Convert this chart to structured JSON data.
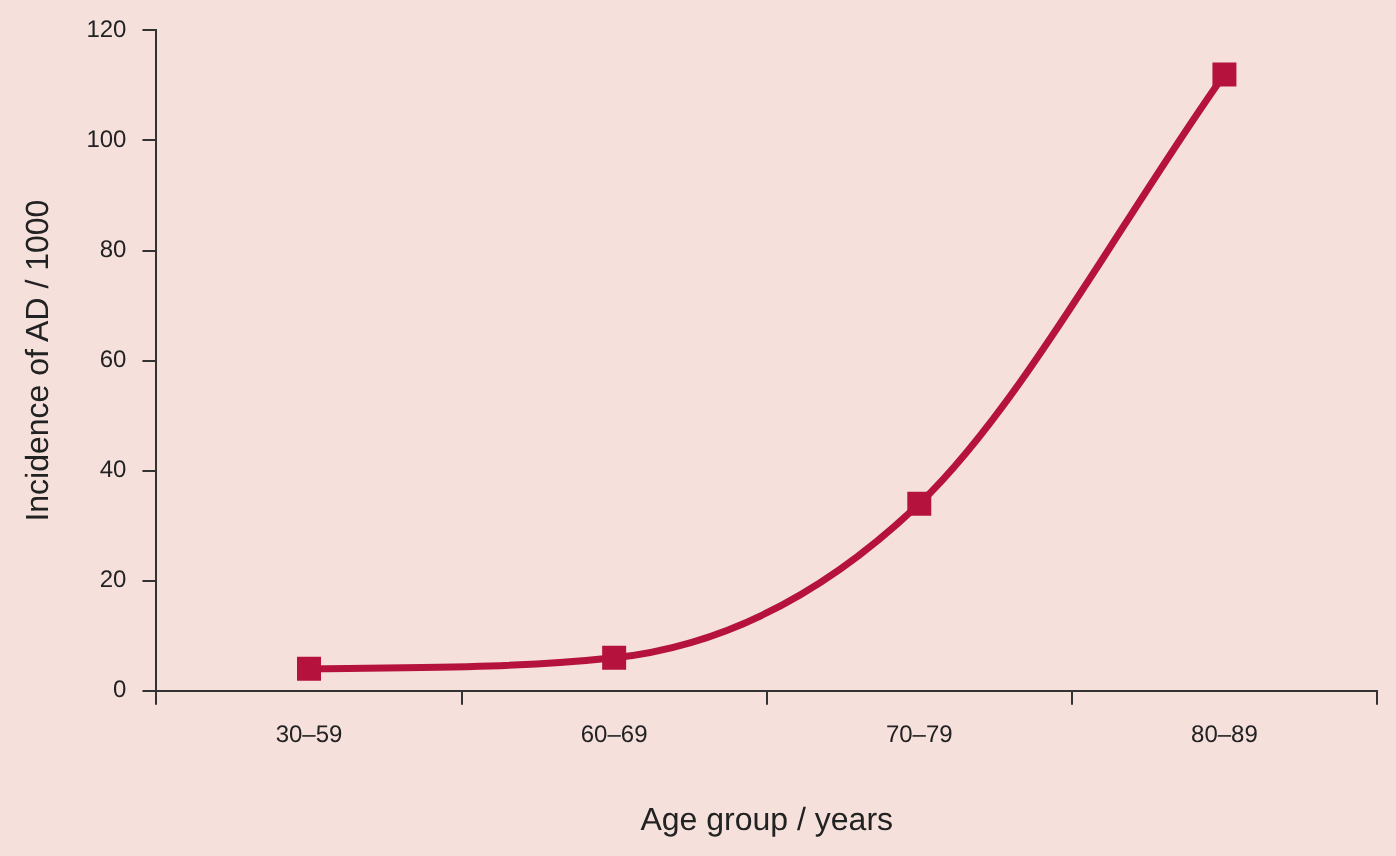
{
  "chart_data": {
    "type": "line",
    "xlabel": "Age group / years",
    "ylabel": "Incidence of AD / 1000",
    "categories": [
      "30–59",
      "60–69",
      "70–79",
      "80–89"
    ],
    "series": [
      {
        "color": "#b5123e",
        "values": [
          4,
          6,
          34,
          112
        ]
      }
    ],
    "ylim": [
      0,
      120
    ],
    "yticks": [
      0,
      20,
      40,
      60,
      80,
      100,
      120
    ],
    "marker": "square"
  }
}
